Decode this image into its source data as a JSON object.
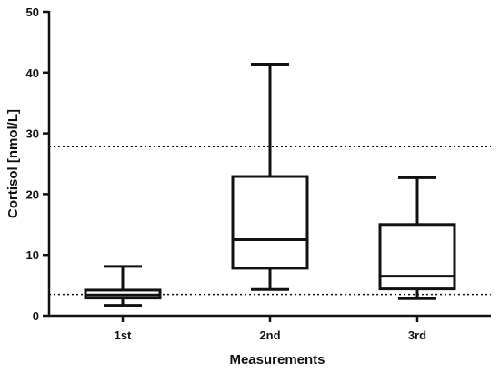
{
  "chart_data": {
    "type": "box",
    "title": "",
    "xlabel": "Measurements",
    "ylabel": "Cortisol [nmol/L]",
    "ylim": [
      0,
      50
    ],
    "yticks": [
      0,
      10,
      20,
      30,
      40,
      50
    ],
    "categories": [
      "1st",
      "2nd",
      "3rd"
    ],
    "boxes": [
      {
        "category": "1st",
        "min": 1.7,
        "q1": 2.9,
        "median": 3.4,
        "q3": 4.2,
        "max": 8.1
      },
      {
        "category": "2nd",
        "min": 4.3,
        "q1": 7.8,
        "median": 12.5,
        "q3": 22.9,
        "max": 41.4
      },
      {
        "category": "3rd",
        "min": 2.8,
        "q1": 4.4,
        "median": 6.5,
        "q3": 15.0,
        "max": 22.7
      }
    ],
    "reference_lines": [
      {
        "value": 27.8,
        "style": "dotted"
      },
      {
        "value": 3.5,
        "style": "dotted"
      }
    ],
    "grid": false,
    "legend": "none"
  }
}
